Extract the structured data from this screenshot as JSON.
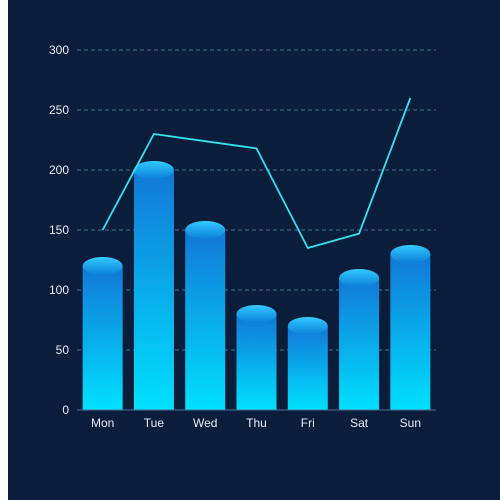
{
  "colors": {
    "background": "#0a1d3b",
    "grid": "#4a6f97",
    "axis_text": "#e6eef8",
    "bar_top": "#1277d6",
    "bar_bottom": "#00e0ff",
    "cap_light": "#33c9ff",
    "cap_dark": "#0a7fd8",
    "line": "#2ee4f2"
  },
  "chart_data": {
    "type": "bar",
    "categories": [
      "Mon",
      "Tue",
      "Wed",
      "Thu",
      "Fri",
      "Sat",
      "Sun"
    ],
    "series": [
      {
        "type": "bar",
        "values": [
          120,
          200,
          150,
          80,
          70,
          110,
          130
        ]
      },
      {
        "type": "line",
        "values": [
          150,
          230,
          224,
          218,
          135,
          147,
          260
        ]
      }
    ],
    "ylim": [
      0,
      300
    ],
    "yticks": [
      0,
      50,
      100,
      150,
      200,
      250,
      300
    ],
    "grid": true,
    "title": "",
    "xlabel": "",
    "ylabel": ""
  }
}
